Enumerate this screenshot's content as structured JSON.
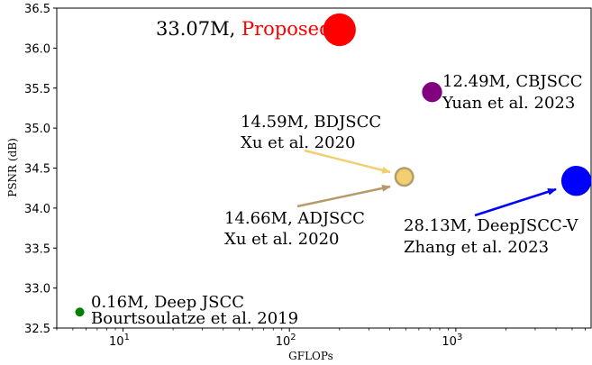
{
  "chart_data": {
    "type": "scatter",
    "xscale": "log",
    "xlim": [
      4,
      6500
    ],
    "ylim": [
      32.5,
      36.5
    ],
    "xlabel": "GFLOPs",
    "ylabel": "PSNR (dB)",
    "yticks": [
      "32.5",
      "33.0",
      "33.5",
      "34.0",
      "34.5",
      "35.0",
      "35.5",
      "36.0",
      "36.5"
    ],
    "xticks": [
      {
        "value": 10,
        "base": "10",
        "exp": "1"
      },
      {
        "value": 100,
        "base": "10",
        "exp": "2"
      },
      {
        "value": 1000,
        "base": "10",
        "exp": "3"
      }
    ],
    "points": [
      {
        "name": "Proposed",
        "params": "33.07M",
        "x": 200,
        "y": 36.23,
        "color": "#ff0000",
        "size_m": 33.07
      },
      {
        "name": "CBJSCC",
        "params": "12.49M",
        "x": 720,
        "y": 35.45,
        "color": "#800080",
        "size_m": 12.49
      },
      {
        "name": "BDJSCC",
        "params": "14.59M",
        "x": 490,
        "y": 34.39,
        "color": "#f0d070",
        "size_m": 14.59
      },
      {
        "name": "ADJSCC",
        "params": "14.66M",
        "x": 490,
        "y": 34.39,
        "color": "#b89a6a",
        "size_m": 14.66
      },
      {
        "name": "DeepJSCC-V",
        "params": "28.13M",
        "x": 5300,
        "y": 34.34,
        "color": "#0000ff",
        "size_m": 28.13
      },
      {
        "name": "Deep JSCC",
        "params": "0.16M",
        "x": 5.5,
        "y": 32.7,
        "color": "#008000",
        "size_m": 0.16
      }
    ],
    "annotations": [
      {
        "line1_params": "33.07M, ",
        "line1_name": "Proposed",
        "name_color": "#ff0000"
      },
      {
        "line1": "12.49M, CBJSCC",
        "line2": "Yuan et al. 2023"
      },
      {
        "line1": "14.59M, BDJSCC",
        "line2": "Xu et al. 2020",
        "arrow_color": "#f0d070"
      },
      {
        "line1": "14.66M, ADJSCC",
        "line2": "Xu et al. 2020",
        "arrow_color": "#b89a6a"
      },
      {
        "line1": "28.13M, DeepJSCC-V",
        "line2": "Zhang et al. 2023",
        "arrow_color": "#0000ff"
      },
      {
        "line1": "0.16M, Deep JSCC",
        "line2": "Bourtsoulatze et al. 2019"
      }
    ]
  }
}
